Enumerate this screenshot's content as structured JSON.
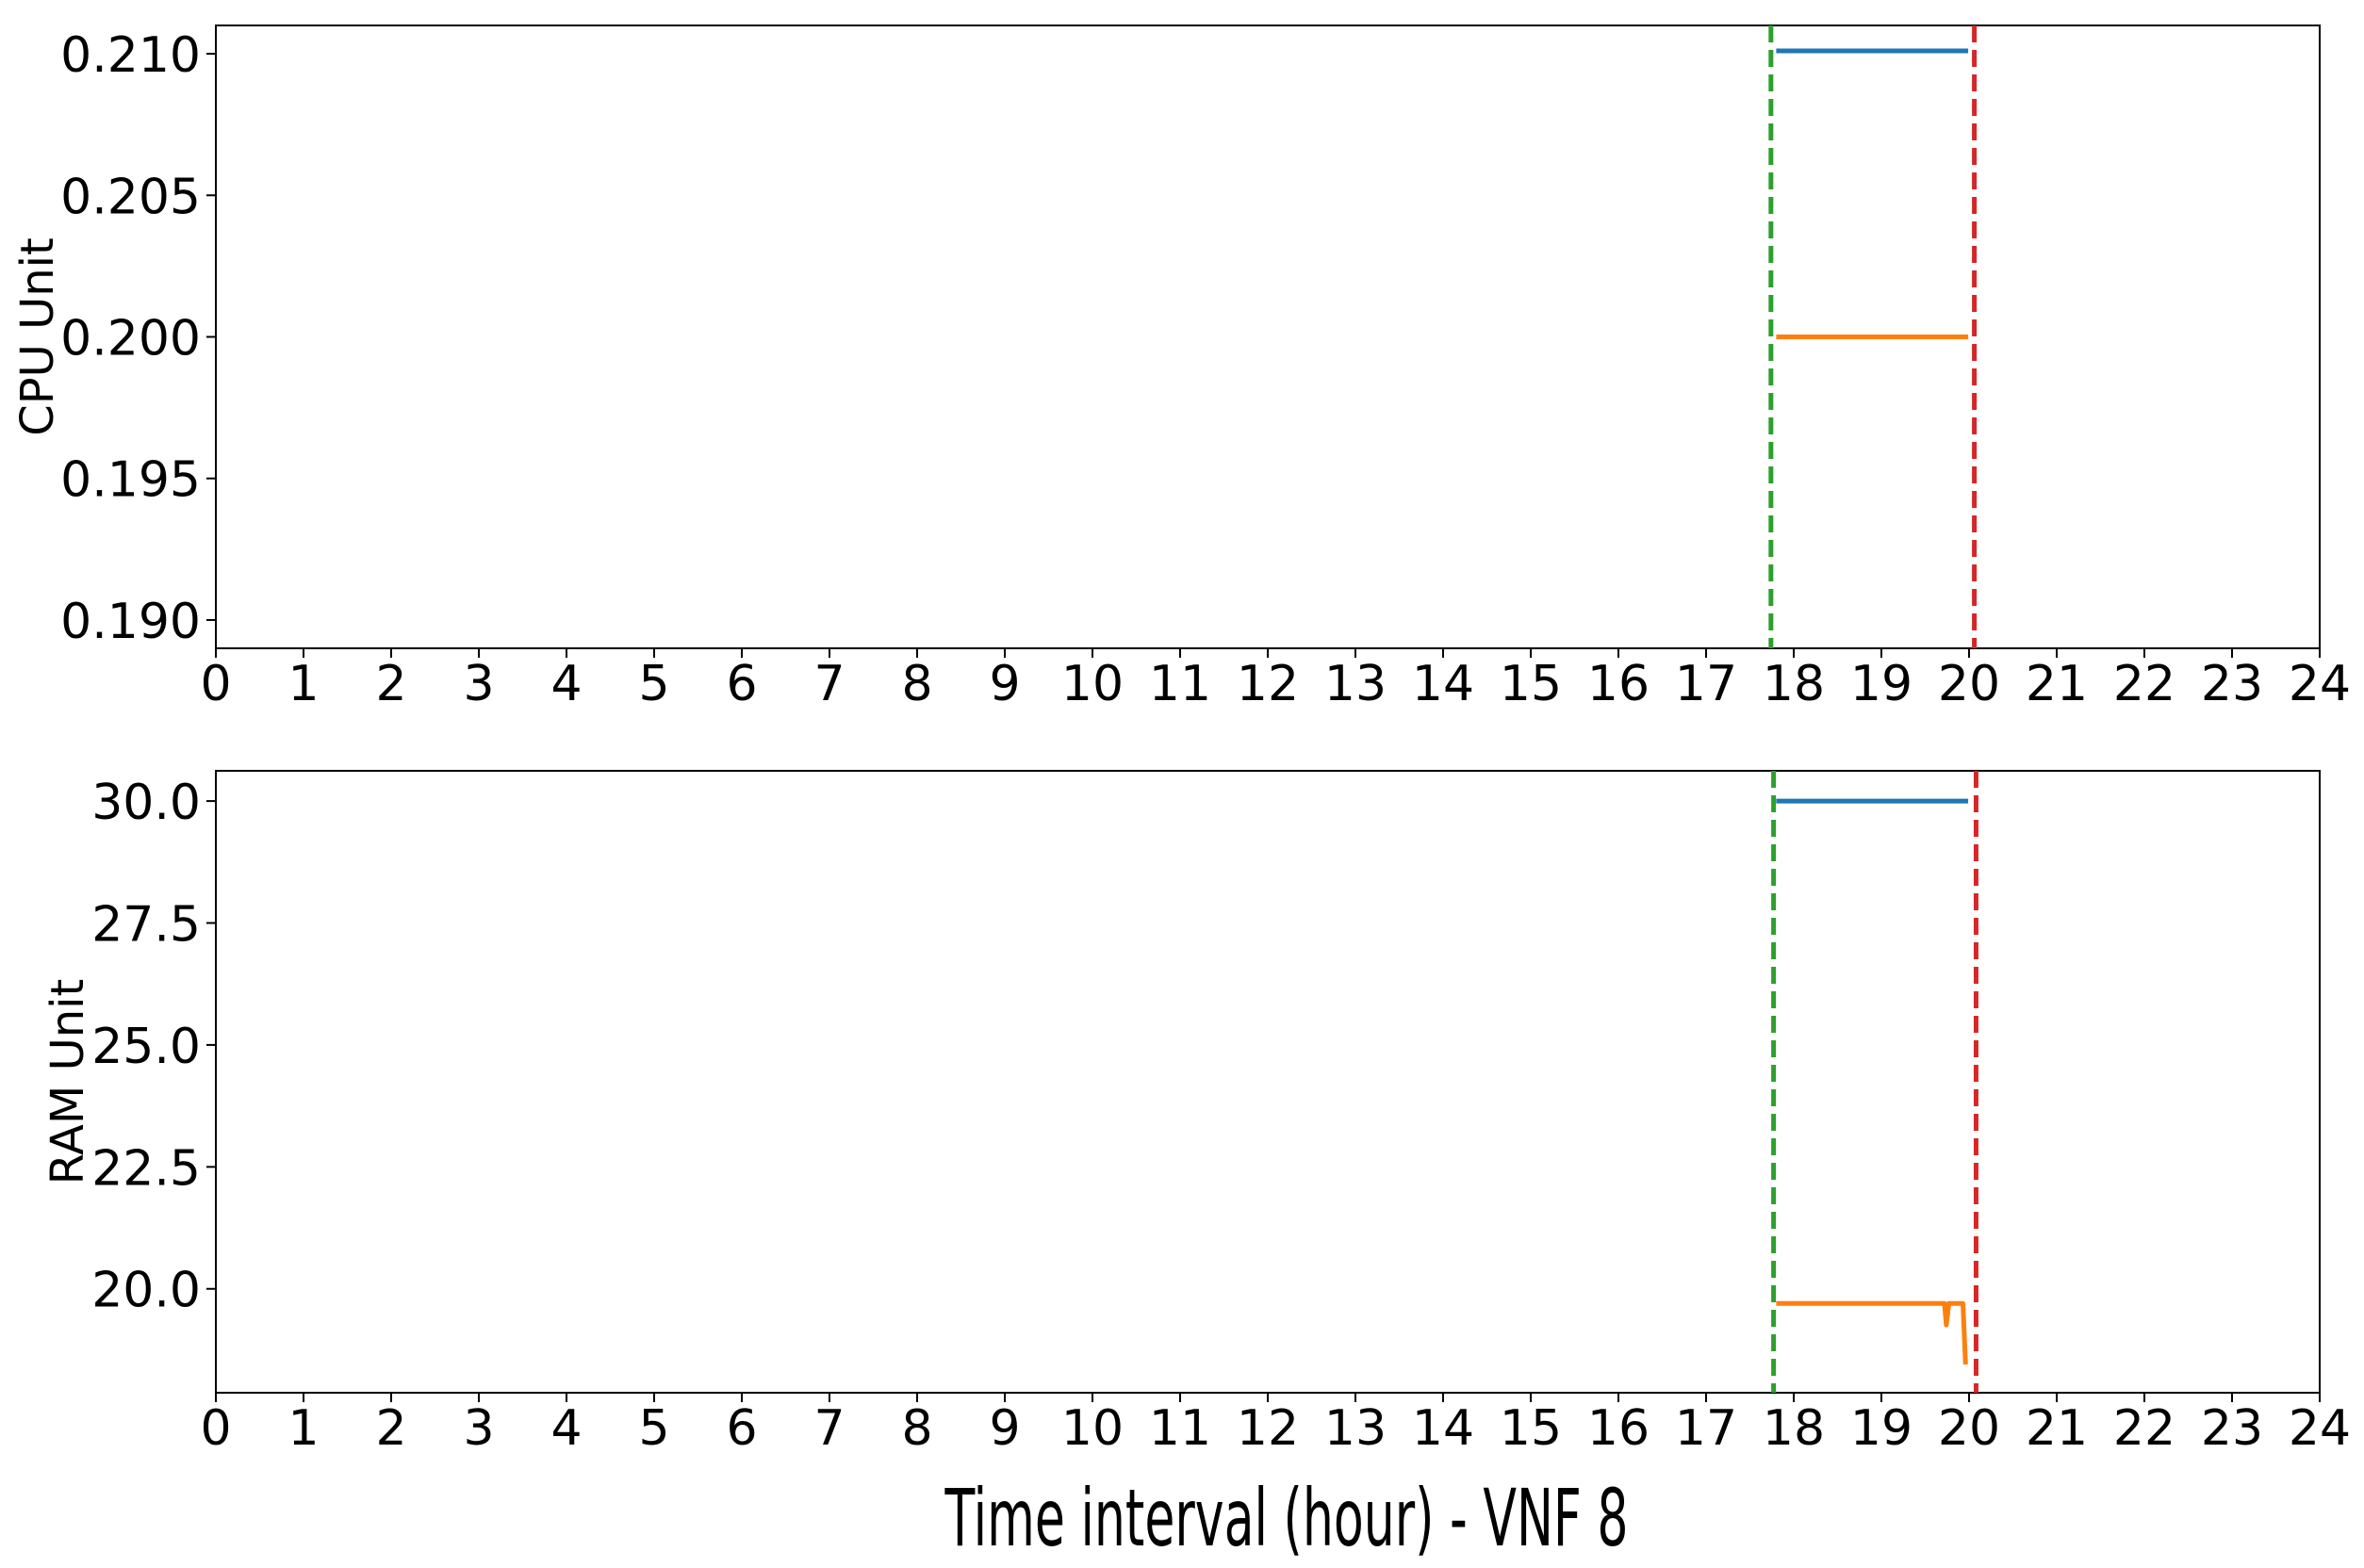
{
  "chart_data": [
    {
      "type": "line",
      "ylabel": "CPU Unit",
      "xlim": [
        0,
        24
      ],
      "xticks": [
        0,
        1,
        2,
        3,
        4,
        5,
        6,
        7,
        8,
        9,
        10,
        11,
        12,
        13,
        14,
        15,
        16,
        17,
        18,
        19,
        20,
        21,
        22,
        23,
        24
      ],
      "ylim": [
        0.189,
        0.211
      ],
      "yticks": [
        {
          "value": 0.19,
          "label": "0.190"
        },
        0.195,
        {
          "value": 0.2,
          "label": "0.200"
        },
        0.205,
        {
          "value": 0.21,
          "label": "0.210"
        }
      ],
      "series": [
        {
          "color": "#1f77b4",
          "x": [
            17.8,
            19.99
          ],
          "values": [
            0.2101,
            0.2101
          ]
        },
        {
          "color": "#ff7f0e",
          "x": [
            17.8,
            19.99
          ],
          "values": [
            0.2,
            0.2
          ]
        }
      ],
      "vlines": [
        {
          "x": 17.74,
          "color": "#2ca02c"
        },
        {
          "x": 20.06,
          "color": "#d62728"
        }
      ]
    },
    {
      "type": "line",
      "ylabel": "RAM Unit",
      "xlabel": "Time interval (hour) - VNF 8",
      "xlim": [
        0,
        24
      ],
      "xticks": [
        0,
        1,
        2,
        3,
        4,
        5,
        6,
        7,
        8,
        9,
        10,
        11,
        12,
        13,
        14,
        15,
        16,
        17,
        18,
        19,
        20,
        21,
        22,
        23,
        24
      ],
      "ylim": [
        17.87,
        30.62
      ],
      "yticks": [
        {
          "value": 20,
          "label": "20.0"
        },
        22.5,
        {
          "value": 25,
          "label": "25.0"
        },
        27.5,
        {
          "value": 30,
          "label": "30.0"
        }
      ],
      "series": [
        {
          "color": "#1f77b4",
          "x": [
            17.8,
            19.99
          ],
          "values": [
            30.0,
            30.0
          ]
        },
        {
          "color": "#ff7f0e",
          "x": [
            17.8,
            19.68,
            19.72,
            19.74,
            19.77,
            19.9,
            19.93,
            19.96
          ],
          "values": [
            19.7,
            19.7,
            19.7,
            19.26,
            19.7,
            19.7,
            19.7,
            18.45
          ]
        }
      ],
      "vlines": [
        {
          "x": 17.77,
          "color": "#2ca02c"
        },
        {
          "x": 20.08,
          "color": "#d62728"
        }
      ]
    }
  ]
}
